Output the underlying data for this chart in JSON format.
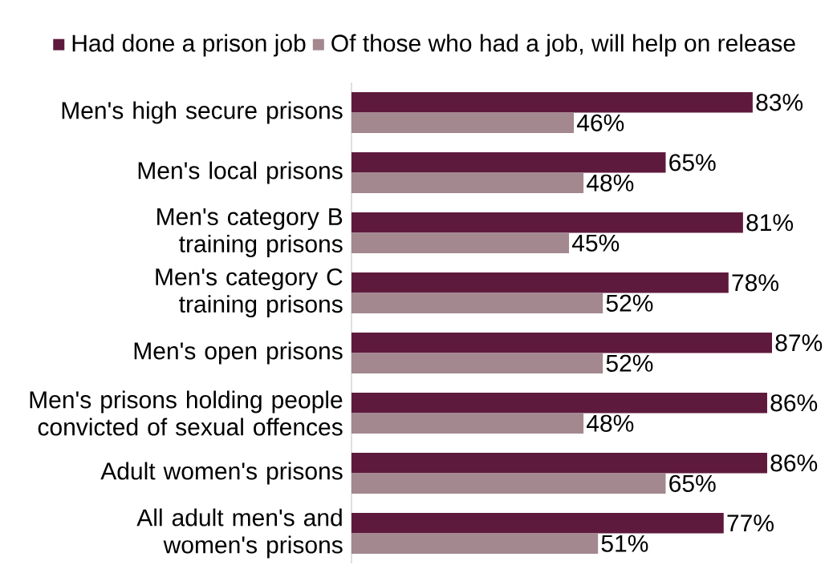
{
  "chart_data": {
    "type": "bar",
    "orientation": "horizontal",
    "legend": "top",
    "categories": [
      "Men's high secure prisons",
      "Men's local prisons",
      "Men's category B training prisons",
      "Men's category C training prisons",
      "Men's open prisons",
      "Men's prisons holding people convicted of sexual offences",
      "Adult women's prisons",
      "All adult men's and women's prisons"
    ],
    "series": [
      {
        "name": "Had done a prison job",
        "color": "#5e1a3c",
        "values": [
          83,
          65,
          81,
          78,
          87,
          86,
          86,
          77
        ],
        "value_labels": [
          "83%",
          "65%",
          "81%",
          "78%",
          "87%",
          "86%",
          "86%",
          "77%"
        ]
      },
      {
        "name": "Of those who had a job, will help on release",
        "color": "#a3888f",
        "values": [
          46,
          48,
          45,
          52,
          52,
          48,
          65,
          51
        ],
        "value_labels": [
          "46%",
          "48%",
          "45%",
          "52%",
          "52%",
          "48%",
          "65%",
          "51%"
        ]
      }
    ]
  }
}
